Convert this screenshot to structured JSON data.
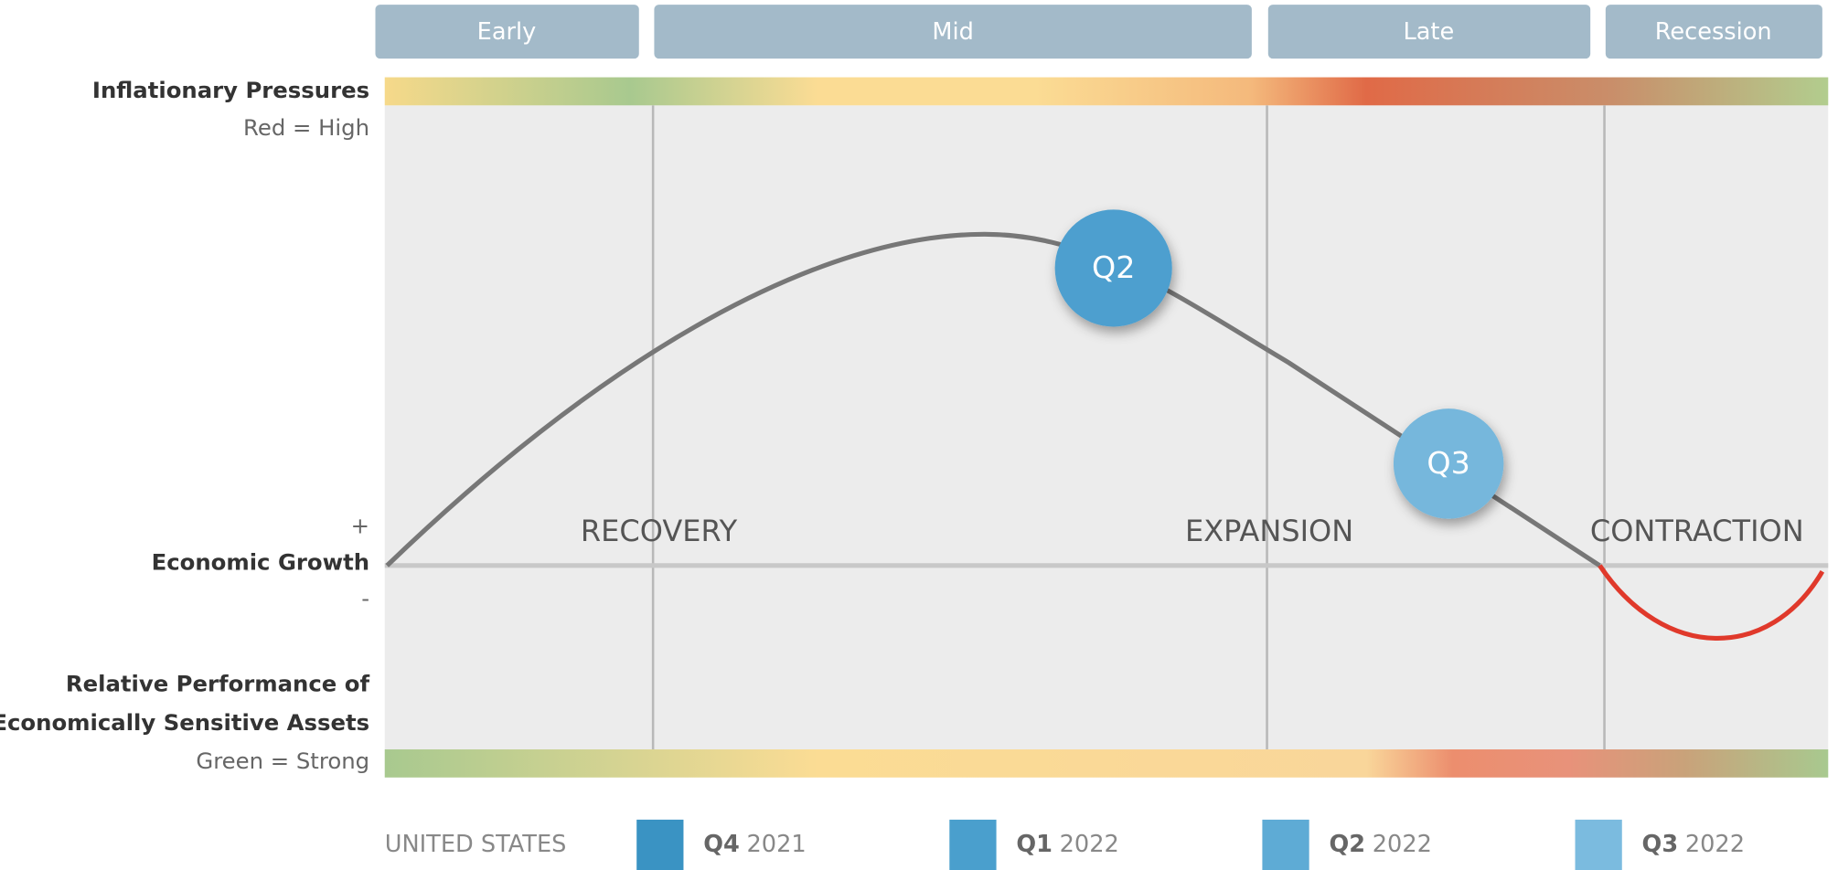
{
  "phases": [
    "Early",
    "Mid",
    "Late",
    "Recession"
  ],
  "labels": {
    "inflation": "Inflationary Pressures",
    "inflation_key": "Red = High",
    "plus": "+",
    "growth": "Economic Growth",
    "minus": "-",
    "performance": [
      "Relative Performance of",
      "Economically Sensitive Assets"
    ],
    "performance_key": "Green = Strong"
  },
  "regions": [
    "RECOVERY",
    "EXPANSION",
    "CONTRACTION"
  ],
  "markers": [
    {
      "label": "Q2",
      "color": "#4d9fcf"
    },
    {
      "label": "Q3",
      "color": "#76b7dc"
    }
  ],
  "legend": {
    "country": "UNITED STATES",
    "items": [
      {
        "quarter": "Q4",
        "year": "2021",
        "color": "#3a93c3"
      },
      {
        "quarter": "Q1",
        "year": "2022",
        "color": "#4a9fcd"
      },
      {
        "quarter": "Q2",
        "year": "2022",
        "color": "#5eabd5"
      },
      {
        "quarter": "Q3",
        "year": "2022",
        "color": "#7bbbdf"
      }
    ]
  }
}
